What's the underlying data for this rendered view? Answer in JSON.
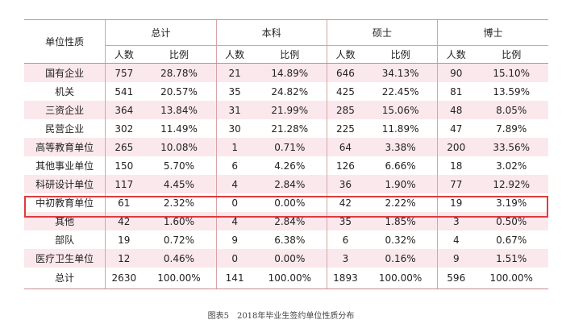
{
  "table": {
    "category_header": "单位性质",
    "groups": [
      "总计",
      "本科",
      "硕士",
      "博士"
    ],
    "subheaders": [
      "人数",
      "比例"
    ],
    "rows": [
      {
        "name": "国有企业",
        "vals": [
          "757",
          "28.78%",
          "21",
          "14.89%",
          "646",
          "34.13%",
          "90",
          "15.10%"
        ]
      },
      {
        "name": "机关",
        "vals": [
          "541",
          "20.57%",
          "35",
          "24.82%",
          "425",
          "22.45%",
          "81",
          "13.59%"
        ]
      },
      {
        "name": "三资企业",
        "vals": [
          "364",
          "13.84%",
          "31",
          "21.99%",
          "285",
          "15.06%",
          "48",
          "8.05%"
        ]
      },
      {
        "name": "民营企业",
        "vals": [
          "302",
          "11.49%",
          "30",
          "21.28%",
          "225",
          "11.89%",
          "47",
          "7.89%"
        ]
      },
      {
        "name": "高等教育单位",
        "vals": [
          "265",
          "10.08%",
          "1",
          "0.71%",
          "64",
          "3.38%",
          "200",
          "33.56%"
        ]
      },
      {
        "name": "其他事业单位",
        "vals": [
          "150",
          "5.70%",
          "6",
          "4.26%",
          "126",
          "6.66%",
          "18",
          "3.02%"
        ]
      },
      {
        "name": "科研设计单位",
        "vals": [
          "117",
          "4.45%",
          "4",
          "2.84%",
          "36",
          "1.90%",
          "77",
          "12.92%"
        ]
      },
      {
        "name": "中初教育单位",
        "vals": [
          "61",
          "2.32%",
          "0",
          "0.00%",
          "42",
          "2.22%",
          "19",
          "3.19%"
        ]
      },
      {
        "name": "其他",
        "vals": [
          "42",
          "1.60%",
          "4",
          "2.84%",
          "35",
          "1.85%",
          "3",
          "0.50%"
        ]
      },
      {
        "name": "部队",
        "vals": [
          "19",
          "0.72%",
          "9",
          "6.38%",
          "6",
          "0.32%",
          "4",
          "0.67%"
        ]
      },
      {
        "name": "医疗卫生单位",
        "vals": [
          "12",
          "0.46%",
          "0",
          "0.00%",
          "3",
          "0.16%",
          "9",
          "1.51%"
        ]
      },
      {
        "name": "总计",
        "vals": [
          "2630",
          "100.00%",
          "141",
          "100.00%",
          "1893",
          "100.00%",
          "596",
          "100.00%"
        ]
      }
    ]
  },
  "caption": "图表5　2018年毕业生签约单位性质分布",
  "colors": {
    "alt_row": "#fbe8ec",
    "rule": "#c98b8b",
    "highlight_box": "#e03b3b"
  }
}
